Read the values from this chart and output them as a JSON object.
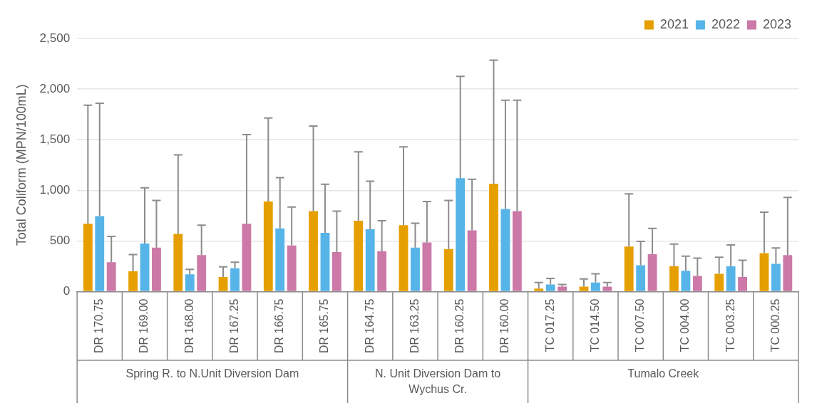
{
  "chart_data": {
    "type": "bar",
    "ylabel": "Total Coliform (MPN/100mL)",
    "categories": [
      "DR 170.75",
      "DR 169.00",
      "DR 168.00",
      "DR 167.25",
      "DR 166.75",
      "DR 165.75",
      "DR 164.75",
      "DR 163.25",
      "DR 160.25",
      "DR 160.00",
      "TC 017.25",
      "TC 014.50",
      "TC 007.50",
      "TC 004.00",
      "TC 003.25",
      "TC 000.25"
    ],
    "series": [
      {
        "name": "2021",
        "color": "#e69f00",
        "values": [
          670,
          200,
          570,
          145,
          890,
          795,
          700,
          655,
          420,
          1065,
          30,
          50,
          445,
          250,
          175,
          380
        ],
        "errors": [
          [
            670,
            1840
          ],
          [
            200,
            365
          ],
          [
            570,
            1350
          ],
          [
            145,
            245
          ],
          [
            890,
            1715
          ],
          [
            795,
            1635
          ],
          [
            700,
            1380
          ],
          [
            655,
            1430
          ],
          [
            420,
            900
          ],
          [
            1065,
            2285
          ],
          [
            30,
            90
          ],
          [
            50,
            125
          ],
          [
            445,
            965
          ],
          [
            250,
            470
          ],
          [
            175,
            340
          ],
          [
            380,
            785
          ]
        ]
      },
      {
        "name": "2022",
        "color": "#56b4e9",
        "values": [
          745,
          475,
          170,
          230,
          625,
          580,
          615,
          435,
          1120,
          815,
          70,
          90,
          260,
          205,
          250,
          275
        ],
        "errors": [
          [
            745,
            1860
          ],
          [
            475,
            1025
          ],
          [
            170,
            220
          ],
          [
            230,
            290
          ],
          [
            625,
            1125
          ],
          [
            580,
            1060
          ],
          [
            615,
            1090
          ],
          [
            435,
            675
          ],
          [
            1120,
            2125
          ],
          [
            815,
            1890
          ],
          [
            70,
            130
          ],
          [
            90,
            175
          ],
          [
            260,
            495
          ],
          [
            205,
            350
          ],
          [
            250,
            460
          ],
          [
            275,
            430
          ]
        ]
      },
      {
        "name": "2023",
        "color": "#cc79a7",
        "values": [
          290,
          435,
          360,
          670,
          455,
          390,
          400,
          485,
          605,
          795,
          50,
          50,
          370,
          155,
          145,
          360
        ],
        "errors": [
          [
            290,
            545
          ],
          [
            435,
            900
          ],
          [
            360,
            655
          ],
          [
            670,
            1550
          ],
          [
            455,
            835
          ],
          [
            390,
            795
          ],
          [
            400,
            700
          ],
          [
            485,
            890
          ],
          [
            605,
            1110
          ],
          [
            795,
            1890
          ],
          [
            50,
            70
          ],
          [
            50,
            90
          ],
          [
            370,
            625
          ],
          [
            155,
            330
          ],
          [
            145,
            310
          ],
          [
            360,
            930
          ]
        ]
      }
    ],
    "ylim": [
      0,
      2500
    ],
    "yticks": [
      0,
      500,
      {
        "value": 1000,
        "label": "1,000"
      },
      {
        "value": 1500,
        "label": "1,500"
      },
      {
        "value": 2000,
        "label": "2,000"
      },
      {
        "value": 2500,
        "label": "2,500"
      }
    ],
    "grid": "y",
    "legend": "top right",
    "annotations": [
      "Spring R. to N.Unit Diversion Dam",
      "N. Unit Diversion Dam to Wychus Cr.",
      "Tumalo Creek"
    ]
  }
}
